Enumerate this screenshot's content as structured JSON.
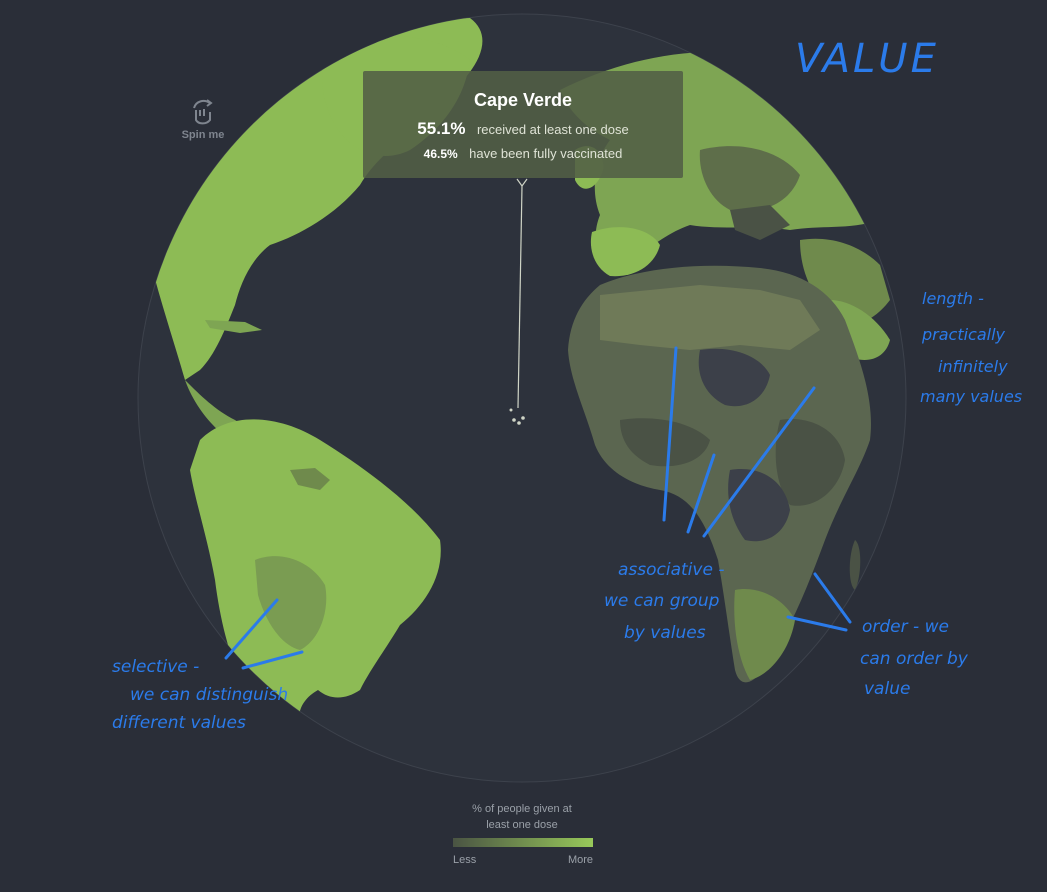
{
  "tooltip": {
    "country": "Cape Verde",
    "at_least_one_dose_pct": "55.1%",
    "at_least_one_dose_label": "received at least one dose",
    "fully_vaccinated_pct": "46.5%",
    "fully_vaccinated_label": "have been fully vaccinated"
  },
  "spin_control": {
    "label": "Spin me",
    "icon": "hand-rotate-icon"
  },
  "legend": {
    "title_line1": "% of people given at",
    "title_line2": "least one dose",
    "min_label": "Less",
    "max_label": "More",
    "gradient_start": "#4a5443",
    "gradient_end": "#98c95a"
  },
  "colors": {
    "background": "#2a2e38",
    "ocean": "#2d323c",
    "high_value_land": "#8dbb55",
    "mid_value_land": "#6f8a4c",
    "low_value_land": "#4a5245",
    "lowest_value_land": "#3c4049",
    "annotation_ink": "#2b7bea"
  },
  "annotations": {
    "heading": "VALUE",
    "length_note": [
      "length -",
      "practically",
      "infinitely",
      "many values"
    ],
    "associative_note": [
      "associative -",
      "we can group",
      "by values"
    ],
    "order_note": [
      "order - we",
      "can order by",
      "value"
    ],
    "selective_note": [
      "selective -",
      "we can distinguish",
      "different values"
    ]
  }
}
